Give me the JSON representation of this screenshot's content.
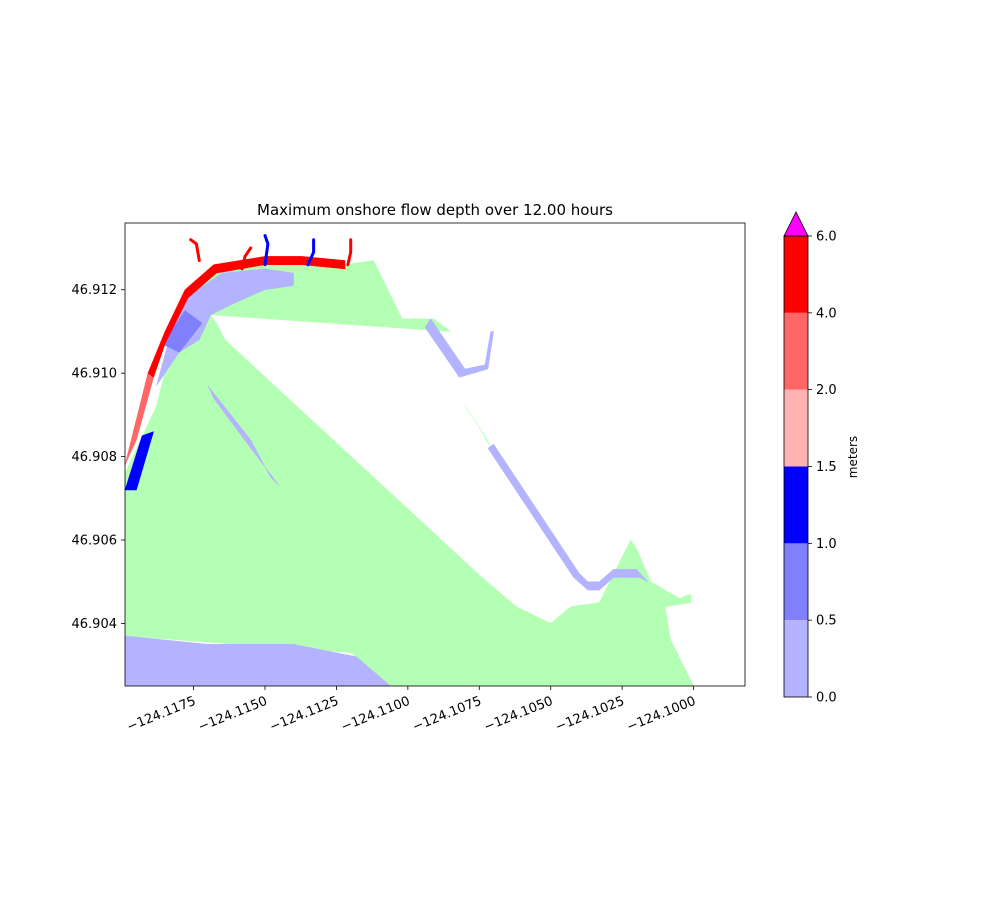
{
  "chart_data": {
    "type": "heatmap",
    "title": "Maximum onshore flow depth over 12.00 hours",
    "xlabel": "",
    "ylabel": "",
    "xlim": [
      -124.1199,
      -124.0982
    ],
    "ylim": [
      46.9025,
      46.9136
    ],
    "x_ticks": [
      -124.1175,
      -124.115,
      -124.1125,
      -124.11,
      -124.1075,
      -124.105,
      -124.1025,
      -124.1
    ],
    "x_tick_labels": [
      "−124.1175",
      "−124.1150",
      "−124.1125",
      "−124.1100",
      "−124.1075",
      "−124.1050",
      "−124.1025",
      "−124.1000"
    ],
    "y_ticks": [
      46.904,
      46.906,
      46.908,
      46.91,
      46.912
    ],
    "y_tick_labels": [
      "46.904",
      "46.906",
      "46.908",
      "46.910",
      "46.912"
    ],
    "grid": false,
    "regions": [
      {
        "name": "dry land",
        "color": "#b3ffb3",
        "points": [
          [
            -124.1199,
            46.9076
          ],
          [
            -124.1188,
            46.9092
          ],
          [
            -124.1179,
            46.9117
          ],
          [
            -124.1168,
            46.9125
          ],
          [
            -124.115,
            46.9127
          ],
          [
            -124.1137,
            46.9127
          ],
          [
            -124.1122,
            46.9126
          ],
          [
            -124.1112,
            46.9127
          ],
          [
            -124.1102,
            46.9113
          ],
          [
            -124.1091,
            46.9113
          ],
          [
            -124.1085,
            46.911
          ],
          [
            -124.1169,
            46.9114
          ],
          [
            -124.1167,
            46.9112
          ],
          [
            -124.1164,
            46.9108
          ],
          [
            -124.1074,
            46.9051
          ],
          [
            -124.1062,
            46.9044
          ],
          [
            -124.105,
            46.904
          ],
          [
            -124.1043,
            46.9044
          ],
          [
            -124.1033,
            46.9045
          ],
          [
            -124.1022,
            46.906
          ],
          [
            -124.102,
            46.9058
          ],
          [
            -124.1015,
            46.905
          ],
          [
            -124.1005,
            46.9046
          ],
          [
            -124.1001,
            46.9047
          ],
          [
            -124.1001,
            46.9045
          ],
          [
            -124.101,
            46.9044
          ],
          [
            -124.1008,
            46.9036
          ],
          [
            -124.1,
            46.9025
          ],
          [
            -124.1106,
            46.9025
          ],
          [
            -124.112,
            46.9033
          ],
          [
            -124.116,
            46.9035
          ],
          [
            -124.1199,
            46.9037
          ]
        ]
      },
      {
        "name": "island land",
        "color": "#b3ffb3",
        "points": [
          [
            -124.108,
            46.9092
          ],
          [
            -124.1073,
            46.9085
          ],
          [
            -124.107,
            46.9081
          ],
          [
            -124.1075,
            46.9087
          ]
        ]
      },
      {
        "name": "0.0-0.5 m bottom flats",
        "color": "#b3b3ff",
        "points": [
          [
            -124.1199,
            46.9037
          ],
          [
            -124.117,
            46.9035
          ],
          [
            -124.114,
            46.9035
          ],
          [
            -124.1118,
            46.9032
          ],
          [
            -124.1106,
            46.9025
          ],
          [
            -124.1199,
            46.9025
          ]
        ]
      },
      {
        "name": "0.0-0.5 m northwest fringe",
        "color": "#b3b3ff",
        "points": [
          [
            -124.118,
            46.9117
          ],
          [
            -124.1165,
            46.9124
          ],
          [
            -124.115,
            46.9125
          ],
          [
            -124.114,
            46.9124
          ],
          [
            -124.114,
            46.9121
          ],
          [
            -124.115,
            46.912
          ],
          [
            -124.116,
            46.9117
          ],
          [
            -124.1169,
            46.9114
          ],
          [
            -124.1173,
            46.9108
          ],
          [
            -124.118,
            46.9105
          ],
          [
            -124.1188,
            46.9097
          ]
        ]
      },
      {
        "name": "0.0-0.5 m channel",
        "color": "#b3b3ff",
        "points": [
          [
            -124.117,
            46.9097
          ],
          [
            -124.1155,
            46.9084
          ],
          [
            -124.1148,
            46.9075
          ],
          [
            -124.1145,
            46.9073
          ],
          [
            -124.1155,
            46.9082
          ],
          [
            -124.1168,
            46.9094
          ]
        ]
      },
      {
        "name": "0.0-0.5 m south seawall",
        "color": "#b3b3ff",
        "points": [
          [
            -124.107,
            46.9083
          ],
          [
            -124.104,
            46.9052
          ],
          [
            -124.1037,
            46.905
          ],
          [
            -124.1033,
            46.905
          ],
          [
            -124.1028,
            46.9053
          ],
          [
            -124.102,
            46.9053
          ],
          [
            -124.1016,
            46.905
          ],
          [
            -124.1019,
            46.9051
          ],
          [
            -124.1028,
            46.9051
          ],
          [
            -124.1033,
            46.9048
          ],
          [
            -124.1037,
            46.9048
          ],
          [
            -124.1042,
            46.9051
          ],
          [
            -124.1072,
            46.9082
          ]
        ]
      },
      {
        "name": "0.0-0.5 m north pier",
        "color": "#b3b3ff",
        "points": [
          [
            -124.1092,
            46.9113
          ],
          [
            -124.108,
            46.9101
          ],
          [
            -124.1073,
            46.9102
          ],
          [
            -124.1071,
            46.911
          ],
          [
            -124.107,
            46.911
          ],
          [
            -124.1072,
            46.9101
          ],
          [
            -124.1082,
            46.9099
          ],
          [
            -124.1094,
            46.9111
          ]
        ]
      },
      {
        "name": "0.5-1.0 m",
        "color": "#8080ff",
        "points": [
          [
            -124.1186,
            46.9107
          ],
          [
            -124.1178,
            46.9115
          ],
          [
            -124.1172,
            46.9112
          ],
          [
            -124.118,
            46.9105
          ]
        ]
      },
      {
        "name": "1.0-1.5 m",
        "color": "#0000ff",
        "points": [
          [
            -124.1199,
            46.9072
          ],
          [
            -124.1193,
            46.9085
          ],
          [
            -124.1189,
            46.9086
          ],
          [
            -124.1195,
            46.9072
          ]
        ]
      },
      {
        "name": "2.0-4.0 m",
        "color": "#ff6666",
        "points": [
          [
            -124.1199,
            46.9078
          ],
          [
            -124.1191,
            46.91
          ],
          [
            -124.1189,
            46.9099
          ],
          [
            -124.1195,
            46.9084
          ]
        ]
      },
      {
        "name": "4.0-6.0 m",
        "color": "#ff0000",
        "points": [
          [
            -124.1191,
            46.91
          ],
          [
            -124.1185,
            46.911
          ],
          [
            -124.1178,
            46.912
          ],
          [
            -124.1168,
            46.9126
          ],
          [
            -124.115,
            46.9128
          ],
          [
            -124.1137,
            46.9128
          ],
          [
            -124.1122,
            46.9127
          ],
          [
            -124.1122,
            46.9125
          ],
          [
            -124.1137,
            46.9126
          ],
          [
            -124.115,
            46.9126
          ],
          [
            -124.1167,
            46.9124
          ],
          [
            -124.1177,
            46.9118
          ],
          [
            -124.1185,
            46.9107
          ],
          [
            -124.1189,
            46.9099
          ]
        ]
      }
    ],
    "jetties": [
      {
        "color": "#ff0000",
        "points": [
          [
            -124.1173,
            46.9127
          ],
          [
            -124.1174,
            46.9131
          ],
          [
            -124.1176,
            46.9132
          ]
        ]
      },
      {
        "color": "#ff0000",
        "points": [
          [
            -124.1158,
            46.9125
          ],
          [
            -124.1157,
            46.9128
          ],
          [
            -124.1155,
            46.913
          ]
        ]
      },
      {
        "color": "#0000ff",
        "points": [
          [
            -124.115,
            46.9126
          ],
          [
            -124.1149,
            46.9131
          ],
          [
            -124.115,
            46.9133
          ]
        ]
      },
      {
        "color": "#0000ff",
        "points": [
          [
            -124.1135,
            46.9126
          ],
          [
            -124.1133,
            46.9129
          ],
          [
            -124.1133,
            46.9132
          ]
        ]
      },
      {
        "color": "#ff0000",
        "points": [
          [
            -124.1121,
            46.9126
          ],
          [
            -124.112,
            46.9129
          ],
          [
            -124.112,
            46.9132
          ]
        ]
      }
    ],
    "colorbar": {
      "label": "meters",
      "levels": [
        0.0,
        0.5,
        1.0,
        1.5,
        2.0,
        4.0,
        6.0
      ],
      "tick_labels": [
        "0.0",
        "0.5",
        "1.0",
        "1.5",
        "2.0",
        "4.0",
        "6.0"
      ],
      "colors": [
        "#b3b3ff",
        "#8080ff",
        "#0000ff",
        "#ffb3b3",
        "#ff6666",
        "#ff0000"
      ],
      "extend_color": "#ff00ff"
    }
  }
}
